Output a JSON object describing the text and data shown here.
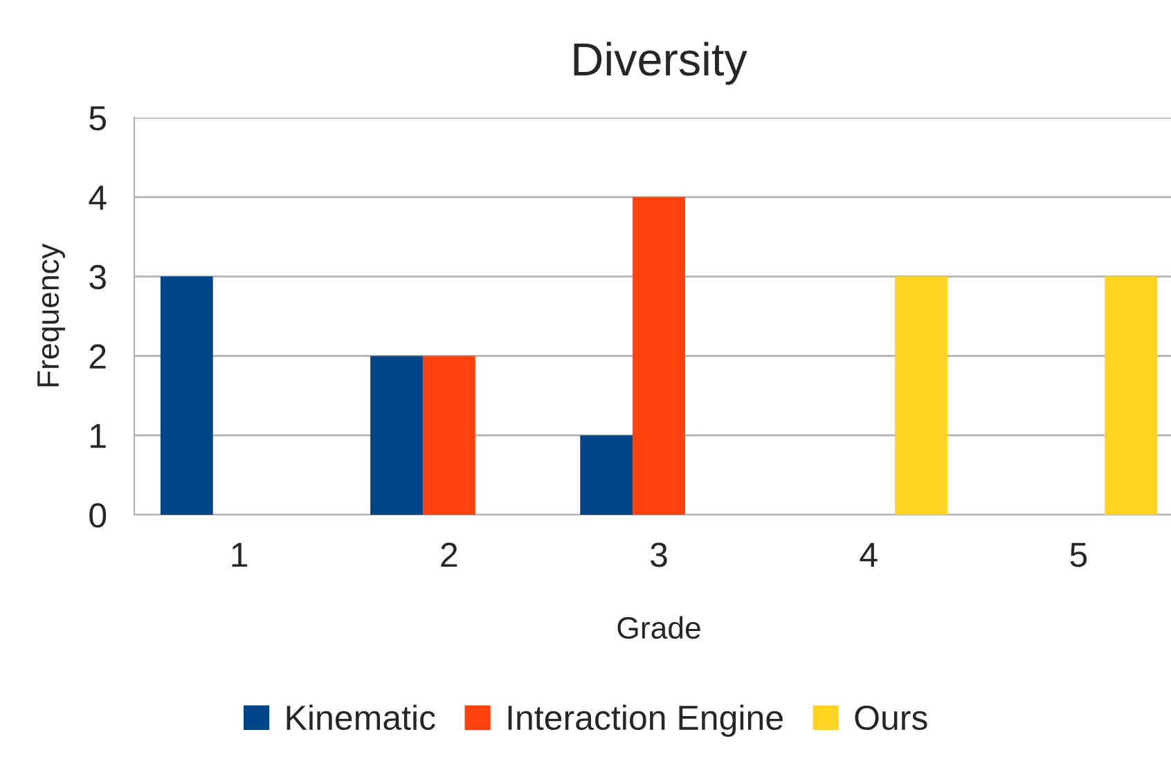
{
  "chart_data": {
    "type": "bar",
    "title": "Diversity",
    "xlabel": "Grade",
    "ylabel": "Frequency",
    "categories": [
      "1",
      "2",
      "3",
      "4",
      "5"
    ],
    "series": [
      {
        "name": "Kinematic",
        "color": "#004586",
        "values": [
          3,
          2,
          1,
          0,
          0
        ]
      },
      {
        "name": "Interaction Engine",
        "color": "#ff420e",
        "values": [
          0,
          2,
          4,
          0,
          0
        ]
      },
      {
        "name": "Ours",
        "color": "#ffd320",
        "values": [
          0,
          0,
          0,
          3,
          3
        ]
      }
    ],
    "ylim": [
      0,
      5
    ],
    "yticks": [
      0,
      1,
      2,
      3,
      4,
      5
    ],
    "grid": "y",
    "legend": "bottom"
  }
}
